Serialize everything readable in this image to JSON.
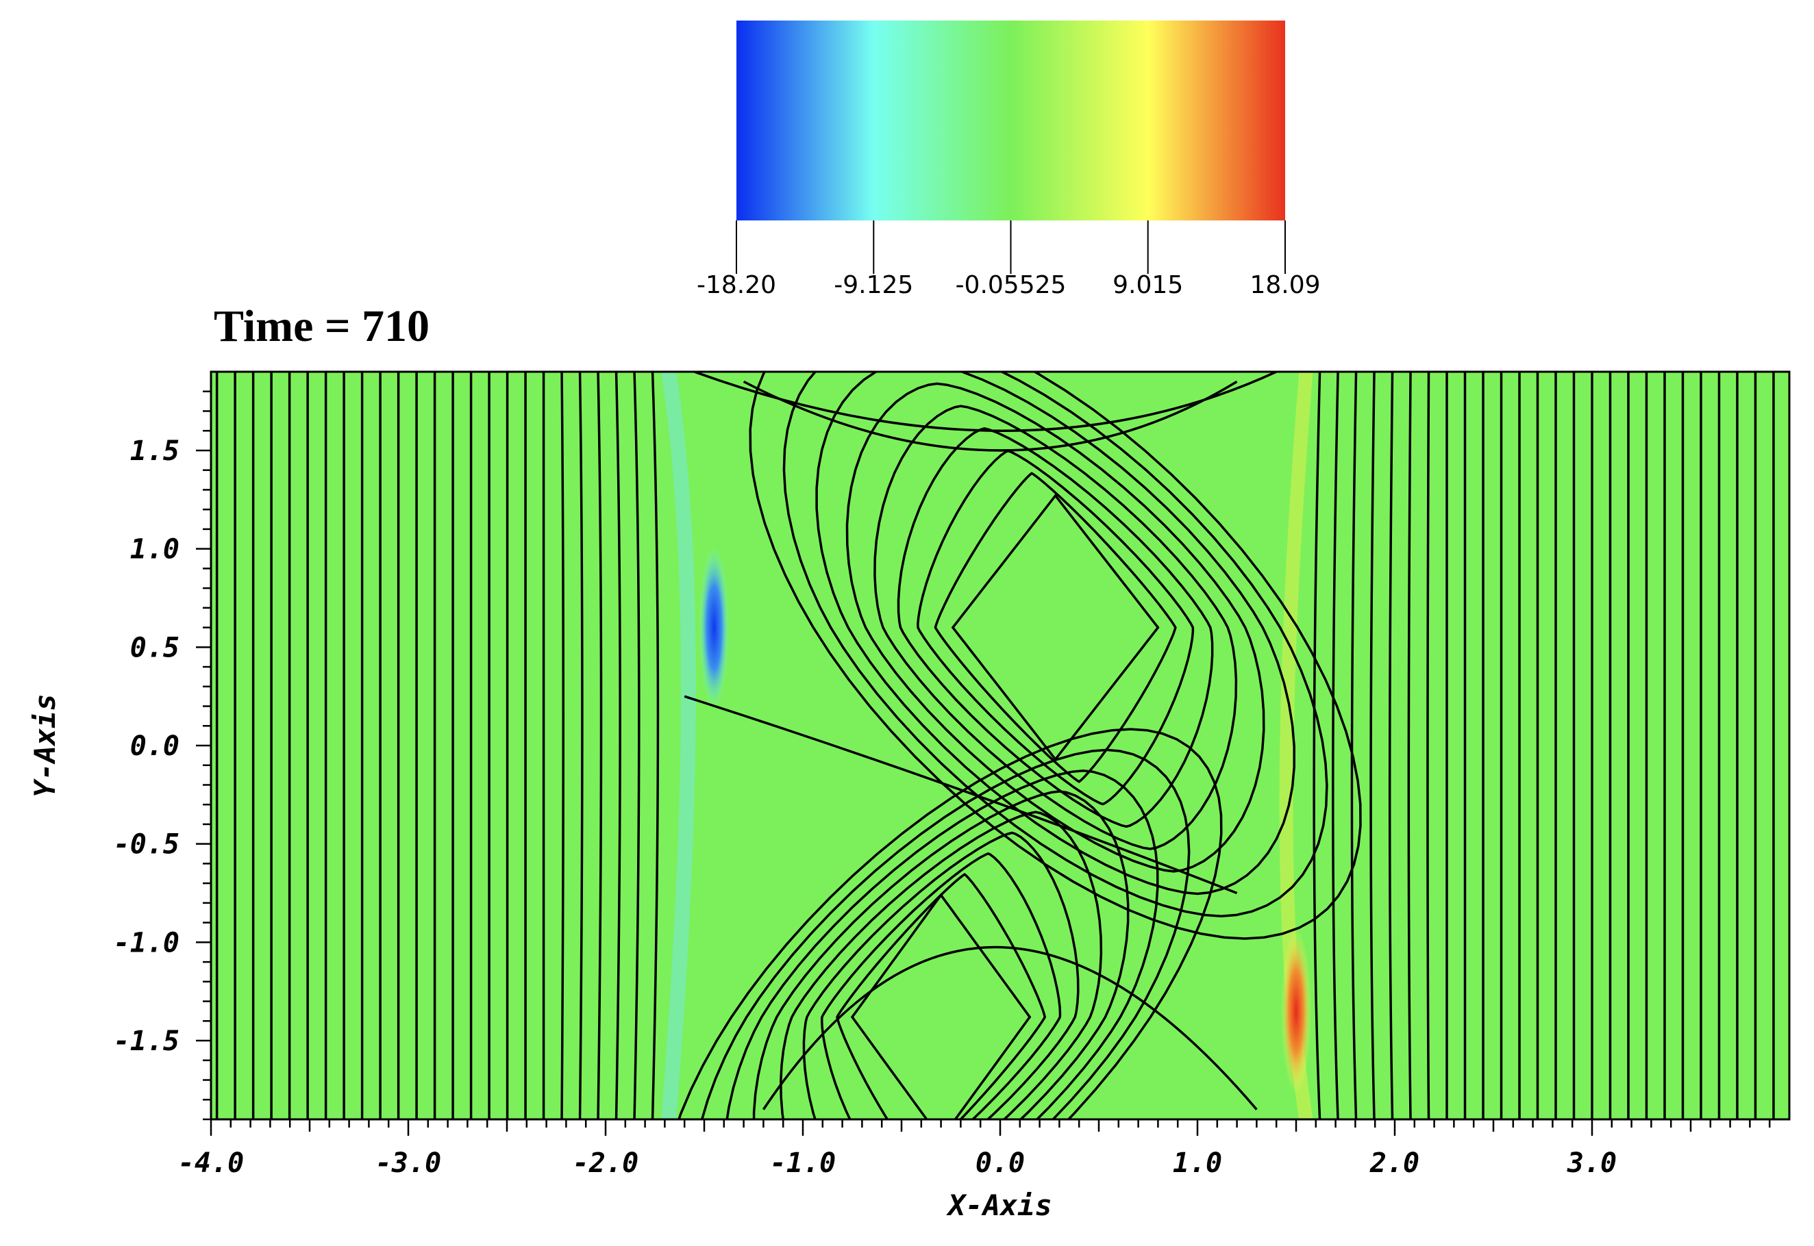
{
  "chart_data": {
    "type": "heatmap",
    "title": "Time = 710",
    "xlabel": "X-Axis",
    "ylabel": "Y-Axis",
    "xlim": [
      -4.0,
      4.0
    ],
    "ylim": [
      -1.9,
      1.9
    ],
    "x_ticks": [
      -4.0,
      -3.0,
      -2.0,
      -1.0,
      0.0,
      1.0,
      2.0,
      3.0
    ],
    "x_tick_labels": [
      "-4.0",
      "-3.0",
      "-2.0",
      "-1.0",
      "0.0",
      "1.0",
      "2.0",
      "3.0"
    ],
    "y_ticks": [
      1.5,
      1.0,
      0.5,
      0.0,
      -0.5,
      -1.0,
      -1.5
    ],
    "y_tick_labels": [
      "1.5",
      "1.0",
      "0.5",
      "0.0",
      "-0.5",
      "-1.0",
      "-1.5"
    ],
    "colorbar": {
      "min": -18.2,
      "max": 18.09,
      "ticks": [
        -18.2,
        -9.125,
        -0.05525,
        9.015,
        18.09
      ],
      "tick_labels": [
        "-18.20",
        "-9.125",
        "-0.05525",
        "9.015",
        "18.09"
      ],
      "colormap": [
        "#0a2ef0",
        "#78fff0",
        "#7cf05a",
        "#ffff5a",
        "#e8321e"
      ]
    },
    "background_value": 0.0,
    "extrema": [
      {
        "label": "min",
        "x": -1.45,
        "y": 0.6,
        "value": -18.2
      },
      {
        "label": "max",
        "x": 1.5,
        "y": -1.35,
        "value": 18.09
      }
    ],
    "vortices": [
      {
        "x": 0.28,
        "y": 0.6,
        "rx": 0.52,
        "ry": 0.67
      },
      {
        "x": -0.3,
        "y": -1.38,
        "rx": 0.45,
        "ry": 0.62
      }
    ],
    "contour_lines": "black",
    "grid": false,
    "legend": "colorbar top-center"
  }
}
